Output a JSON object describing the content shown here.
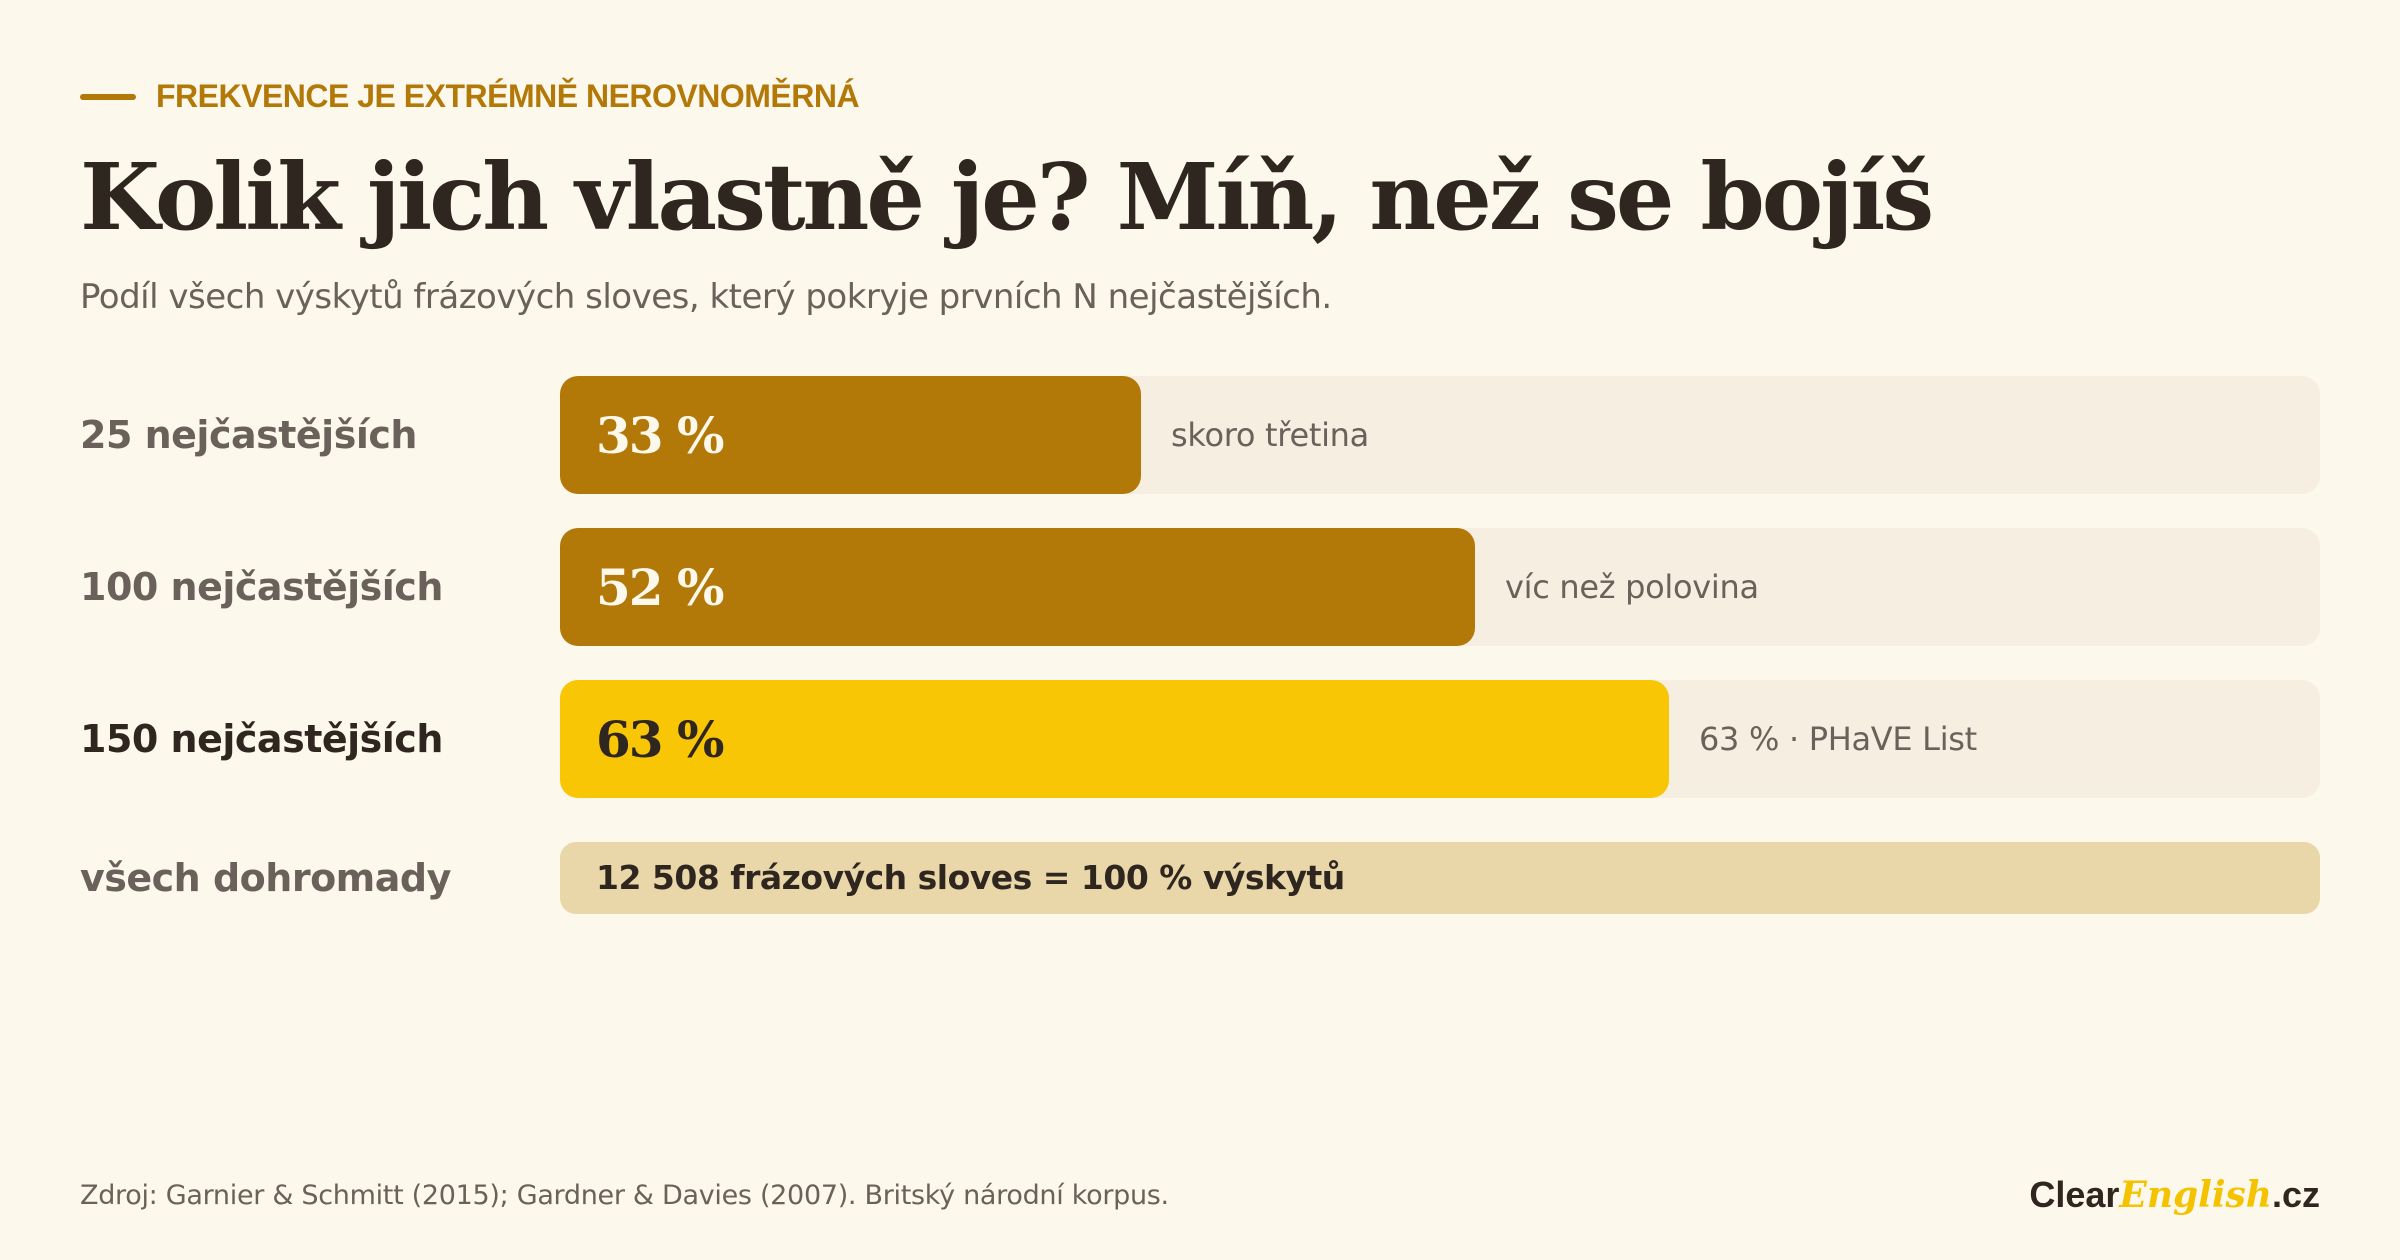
{
  "header": {
    "eyebrow": "FREKVENCE JE EXTRÉMNĚ NEROVNOMĚRNÁ",
    "title": "Kolik jich vlastně je? Míň, než se bojíš",
    "subtitle": "Podíl všech výskytů frázových sloves, který pokryje prvních N nejčastějších."
  },
  "colors": {
    "accent": "#b27808",
    "highlight": "#f9c605",
    "track": "#f6efe1",
    "total": "#e9d7a9",
    "text_dark": "#2e261f",
    "text_muted": "#6a625a"
  },
  "chart_data": {
    "type": "bar",
    "orientation": "horizontal",
    "categories": [
      "25 nejčastějších",
      "100 nejčastějších",
      "150 nejčastějších"
    ],
    "values": [
      33,
      52,
      63
    ],
    "value_labels": [
      "33 %",
      "52 %",
      "63 %"
    ],
    "annotations": [
      "skoro třetina",
      "víc než polovina",
      "63 % · PHaVE List"
    ],
    "xlim": [
      0,
      100
    ],
    "highlighted_category": "150 nejčastějších",
    "total": {
      "label": "všech dohromady",
      "text": "12 508 frázových sloves = 100 % výskytů",
      "value": 100
    }
  },
  "footer": {
    "source": "Zdroj: Garnier & Schmitt (2015); Gardner & Davies (2007). Britský národní korpus.",
    "logo_part1": "Clear",
    "logo_part2": "English",
    "logo_part3": ".cz"
  }
}
